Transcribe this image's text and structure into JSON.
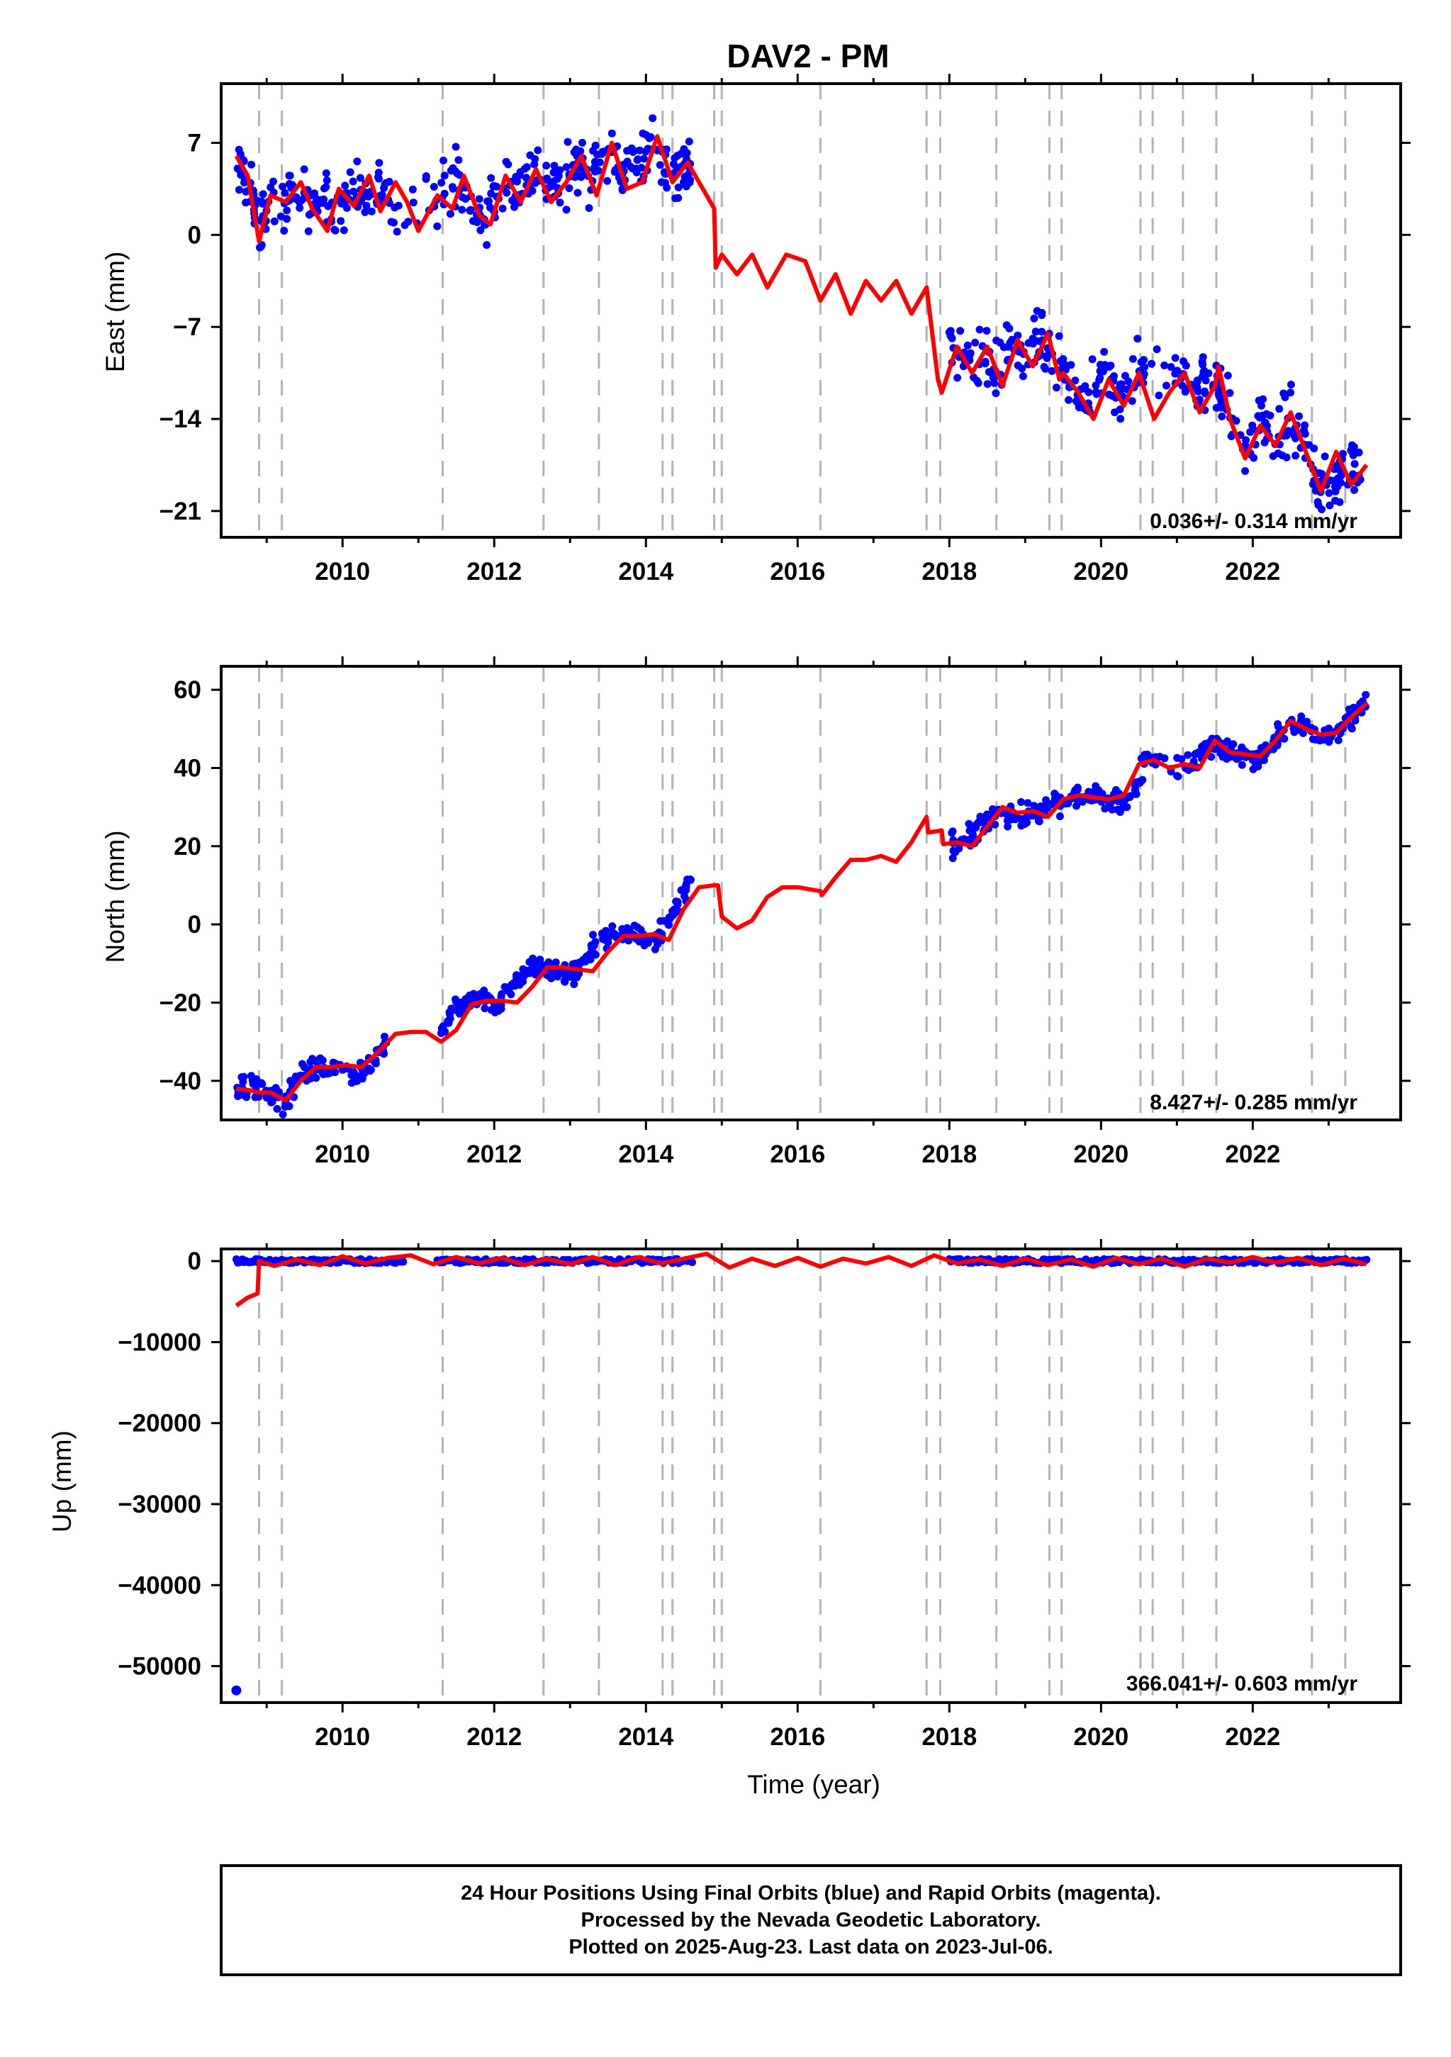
{
  "title": "DAV2 - PM",
  "footer": {
    "lines": [
      "24 Hour Positions Using Final Orbits (blue) and Rapid Orbits (magenta).",
      "Processed by the Nevada Geodetic Laboratory.",
      "Plotted on 2025-Aug-23. Last data on 2023-Jul-06."
    ]
  },
  "colors": {
    "data_points": "#0000ff",
    "model_line": "#ff0000",
    "event_lines": "#b3b3b3",
    "frame": "#000000"
  },
  "chart_data": [
    {
      "type": "scatter",
      "panel": "east",
      "ylabel": "East (mm)",
      "xlabel": "",
      "rate": "0.036+/- 0.314 mm/yr",
      "xlim": [
        2008.4,
        2023.95
      ],
      "ylim": [
        -23,
        11.5
      ],
      "xticks": [
        2010,
        2012,
        2014,
        2016,
        2018,
        2020,
        2022
      ],
      "yticks": [
        7,
        0,
        -7,
        -14,
        -21
      ],
      "yticklabels": [
        "7",
        "0",
        "−7",
        "−14",
        "−21"
      ],
      "event_lines": [
        2008.9,
        2009.2,
        2011.32,
        2012.65,
        2013.38,
        2014.22,
        2014.35,
        2014.9,
        2015.0,
        2016.3,
        2017.7,
        2017.88,
        2018.62,
        2019.32,
        2019.48,
        2020.52,
        2020.68,
        2021.08,
        2021.52,
        2022.78,
        2023.22
      ],
      "series": [
        {
          "kind": "points",
          "x": [
            2008.6,
            2008.75,
            2008.9,
            2009.0,
            2009.3,
            2009.5,
            2009.7,
            2009.9,
            2010.1,
            2010.3,
            2010.5,
            2010.7,
            2011.3,
            2011.5,
            2011.7,
            2011.9,
            2012.1,
            2012.3,
            2012.5,
            2012.7,
            2012.9,
            2013.1,
            2013.3,
            2013.5,
            2013.7,
            2013.9,
            2014.1,
            2014.3,
            2014.5,
            2014.6,
            2018.0,
            2018.2,
            2018.4,
            2018.6,
            2018.8,
            2019.0,
            2019.2,
            2019.4,
            2019.6,
            2019.8,
            2020.0,
            2020.2,
            2020.4,
            2020.6,
            2021.1,
            2021.3,
            2021.5,
            2021.6,
            2021.9,
            2022.1,
            2022.3,
            2022.5,
            2022.7,
            2022.9,
            2023.1,
            2023.3,
            2023.5
          ],
          "y": [
            5.5,
            4.0,
            0.5,
            1.8,
            3.0,
            2.5,
            3.5,
            0.8,
            3.8,
            2.2,
            3.8,
            2.5,
            3.2,
            4.5,
            2.0,
            1.0,
            4.5,
            3.5,
            5.0,
            4.0,
            3.5,
            5.5,
            4.5,
            7.0,
            5.0,
            5.5,
            7.0,
            4.5,
            5.5,
            5.0,
            -8.0,
            -10.0,
            -9.0,
            -10.5,
            -8.5,
            -9.5,
            -8.0,
            -10.0,
            -11.5,
            -13.0,
            -11.0,
            -12.0,
            -11.0,
            -10.0,
            -10.5,
            -11.5,
            -11.0,
            -12.0,
            -16.5,
            -14.5,
            -15.5,
            -14.0,
            -16.0,
            -19.5,
            -18.5,
            -17.5,
            -18.0
          ]
        },
        {
          "kind": "model",
          "x": [
            2008.6,
            2008.75,
            2008.9,
            2009.05,
            2009.25,
            2009.45,
            2009.6,
            2009.8,
            2009.95,
            2010.15,
            2010.35,
            2010.5,
            2010.7,
            2010.85,
            2011.0,
            2011.25,
            2011.45,
            2011.6,
            2011.8,
            2011.95,
            2012.15,
            2012.35,
            2012.55,
            2012.75,
            2012.95,
            2013.15,
            2013.35,
            2013.55,
            2013.75,
            2013.95,
            2014.15,
            2014.35,
            2014.55,
            2014.7,
            2014.9,
            2014.92,
            2015.0,
            2015.2,
            2015.4,
            2015.6,
            2015.85,
            2016.1,
            2016.3,
            2016.5,
            2016.7,
            2016.9,
            2017.1,
            2017.3,
            2017.5,
            2017.7,
            2017.85,
            2017.9,
            2018.1,
            2018.3,
            2018.5,
            2018.7,
            2018.9,
            2019.1,
            2019.3,
            2019.45,
            2019.5,
            2019.7,
            2019.9,
            2020.1,
            2020.3,
            2020.5,
            2020.7,
            2020.9,
            2021.1,
            2021.3,
            2021.5,
            2021.55,
            2021.7,
            2021.9,
            2022.1,
            2022.3,
            2022.5,
            2022.7,
            2022.9,
            2023.1,
            2023.3,
            2023.5
          ],
          "y": [
            6.0,
            4.5,
            -0.5,
            3.0,
            2.5,
            4.0,
            2.0,
            0.3,
            3.5,
            2.2,
            4.5,
            1.8,
            4.0,
            2.5,
            0.3,
            3.0,
            2.0,
            4.5,
            1.5,
            0.8,
            4.5,
            2.5,
            5.0,
            2.5,
            4.0,
            6.0,
            3.0,
            7.0,
            3.5,
            4.0,
            7.5,
            4.0,
            5.5,
            4.0,
            2.0,
            -2.5,
            -1.5,
            -3.0,
            -1.5,
            -4.0,
            -1.5,
            -2.0,
            -5.0,
            -3.0,
            -6.0,
            -3.5,
            -5.0,
            -3.5,
            -6.0,
            -4.0,
            -11.0,
            -12.0,
            -8.5,
            -10.5,
            -8.5,
            -11.5,
            -8.0,
            -10.0,
            -7.5,
            -11.0,
            -10.5,
            -12.0,
            -14.0,
            -11.0,
            -13.0,
            -10.5,
            -14.0,
            -12.0,
            -10.5,
            -13.5,
            -11.5,
            -10.0,
            -14.0,
            -17.0,
            -14.5,
            -16.0,
            -13.5,
            -16.5,
            -19.5,
            -16.5,
            -19.0,
            -17.5
          ]
        }
      ]
    },
    {
      "type": "scatter",
      "panel": "north",
      "ylabel": "North (mm)",
      "xlabel": "",
      "rate": "8.427+/- 0.285 mm/yr",
      "xlim": [
        2008.4,
        2023.95
      ],
      "ylim": [
        -50,
        66
      ],
      "xticks": [
        2010,
        2012,
        2014,
        2016,
        2018,
        2020,
        2022
      ],
      "yticks": [
        60,
        40,
        20,
        0,
        -20,
        -40
      ],
      "yticklabels": [
        "60",
        "40",
        "20",
        "0",
        "−20",
        "−40"
      ],
      "event_lines": [
        2008.9,
        2009.2,
        2011.32,
        2012.65,
        2013.38,
        2014.22,
        2014.35,
        2014.9,
        2015.0,
        2016.3,
        2017.7,
        2017.88,
        2018.62,
        2019.32,
        2019.48,
        2020.52,
        2020.68,
        2021.08,
        2021.52,
        2022.78,
        2023.22
      ],
      "series": [
        {
          "kind": "points",
          "x": [
            2008.6,
            2008.8,
            2009.0,
            2009.2,
            2009.4,
            2009.6,
            2009.8,
            2010.0,
            2010.2,
            2010.4,
            2010.6,
            2011.3,
            2011.5,
            2011.7,
            2011.9,
            2012.1,
            2012.3,
            2012.5,
            2012.7,
            2012.9,
            2013.1,
            2013.3,
            2013.5,
            2013.7,
            2013.9,
            2014.1,
            2014.3,
            2014.5,
            2014.6,
            2018.0,
            2018.2,
            2018.4,
            2018.6,
            2018.8,
            2019.0,
            2019.2,
            2019.4,
            2019.6,
            2019.8,
            2020.0,
            2020.2,
            2020.4,
            2020.6,
            2021.1,
            2021.3,
            2021.5,
            2021.7,
            2021.9,
            2022.1,
            2022.3,
            2022.5,
            2022.7,
            2022.9,
            2023.1,
            2023.3,
            2023.5
          ],
          "y": [
            -42,
            -41,
            -43,
            -46,
            -40,
            -37,
            -36,
            -37,
            -38,
            -35,
            -30,
            -28,
            -21,
            -19,
            -19,
            -20,
            -14,
            -11,
            -11,
            -13,
            -12,
            -6,
            -3,
            -3,
            -2,
            -4,
            0,
            8,
            11,
            21,
            20,
            25,
            29,
            28,
            27,
            29,
            31,
            32,
            33,
            32,
            32,
            33,
            42,
            40,
            44,
            47,
            44,
            43,
            42,
            48,
            51,
            50,
            48,
            48,
            52,
            58
          ]
        },
        {
          "kind": "model",
          "x": [
            2008.6,
            2008.8,
            2008.9,
            2009.05,
            2009.25,
            2009.45,
            2009.65,
            2009.85,
            2010.05,
            2010.25,
            2010.45,
            2010.7,
            2010.9,
            2011.1,
            2011.3,
            2011.5,
            2011.7,
            2011.9,
            2012.1,
            2012.3,
            2012.5,
            2012.7,
            2012.9,
            2013.1,
            2013.3,
            2013.5,
            2013.7,
            2013.9,
            2014.1,
            2014.3,
            2014.5,
            2014.7,
            2014.9,
            2014.95,
            2015.0,
            2015.2,
            2015.4,
            2015.6,
            2015.8,
            2016.0,
            2016.3,
            2016.32,
            2016.5,
            2016.7,
            2016.9,
            2017.1,
            2017.3,
            2017.5,
            2017.7,
            2017.72,
            2017.9,
            2017.92,
            2018.1,
            2018.3,
            2018.5,
            2018.7,
            2018.9,
            2019.1,
            2019.3,
            2019.5,
            2019.7,
            2019.9,
            2020.1,
            2020.3,
            2020.5,
            2020.7,
            2020.9,
            2021.1,
            2021.3,
            2021.5,
            2021.7,
            2021.9,
            2022.1,
            2022.3,
            2022.5,
            2022.7,
            2022.9,
            2023.1,
            2023.3,
            2023.5
          ],
          "y": [
            -42,
            -42.5,
            -43,
            -43,
            -45,
            -40,
            -36.5,
            -36.5,
            -36,
            -36.5,
            -33,
            -28,
            -27.5,
            -27.5,
            -30,
            -27,
            -20.5,
            -19.5,
            -19.5,
            -20,
            -16,
            -11,
            -11,
            -11.5,
            -12,
            -7,
            -3,
            -3,
            -2.5,
            -4,
            4,
            9.5,
            10,
            10,
            2,
            -1,
            1,
            7,
            9.5,
            9.5,
            8.5,
            7.5,
            12,
            16.5,
            16.5,
            17.5,
            16,
            21,
            27.5,
            23.5,
            24,
            20.5,
            21,
            20,
            25,
            30,
            28.5,
            29,
            27.5,
            32,
            33,
            32.5,
            32,
            33,
            41,
            42,
            40,
            41,
            40,
            47,
            44,
            43.5,
            43,
            47,
            52,
            50,
            48.5,
            49,
            53,
            56.5
          ]
        }
      ]
    },
    {
      "type": "scatter",
      "panel": "up",
      "ylabel": "Up (mm)",
      "xlabel": "Time (year)",
      "rate": "366.041+/- 0.603 mm/yr",
      "xlim": [
        2008.4,
        2023.95
      ],
      "ylim": [
        -54500,
        1500
      ],
      "xticks": [
        2010,
        2012,
        2014,
        2016,
        2018,
        2020,
        2022
      ],
      "yticks": [
        0,
        -10000,
        -20000,
        -30000,
        -40000,
        -50000
      ],
      "yticklabels": [
        "0",
        "−10000",
        "−20000",
        "−30000",
        "−40000",
        "−50000"
      ],
      "event_lines": [
        2008.9,
        2009.2,
        2011.32,
        2012.65,
        2013.38,
        2014.22,
        2014.35,
        2014.9,
        2015.0,
        2016.3,
        2017.7,
        2017.88,
        2018.62,
        2019.32,
        2019.48,
        2020.52,
        2020.68,
        2021.08,
        2021.52,
        2022.78,
        2023.22
      ],
      "outlier": {
        "x": 2008.6,
        "y": -53000
      },
      "data_segments": [
        [
          2008.6,
          2010.8
        ],
        [
          2011.25,
          2014.62
        ],
        [
          2018.0,
          2023.5
        ]
      ],
      "series": [
        {
          "kind": "model",
          "x": [
            2008.6,
            2008.75,
            2008.88,
            2008.9,
            2009.1,
            2009.4,
            2009.7,
            2010.0,
            2010.3,
            2010.6,
            2010.9,
            2011.2,
            2011.5,
            2011.8,
            2012.1,
            2012.4,
            2012.7,
            2013.0,
            2013.3,
            2013.6,
            2013.9,
            2014.2,
            2014.5,
            2014.8,
            2015.1,
            2015.4,
            2015.7,
            2016.0,
            2016.3,
            2016.6,
            2016.9,
            2017.2,
            2017.5,
            2017.8,
            2018.1,
            2018.4,
            2018.7,
            2019.0,
            2019.3,
            2019.6,
            2019.9,
            2020.2,
            2020.5,
            2020.8,
            2021.1,
            2021.4,
            2021.7,
            2022.0,
            2022.3,
            2022.6,
            2022.9,
            2023.2,
            2023.5
          ],
          "y": [
            -5500,
            -4500,
            -4000,
            0,
            -600,
            200,
            -500,
            600,
            -300,
            400,
            700,
            -400,
            500,
            -300,
            400,
            -500,
            300,
            -400,
            500,
            -500,
            500,
            -300,
            300,
            900,
            -800,
            300,
            -600,
            400,
            -700,
            300,
            -300,
            500,
            -600,
            700,
            -300,
            200,
            -600,
            300,
            -500,
            200,
            -700,
            400,
            -400,
            300,
            -700,
            300,
            -200,
            500,
            -200,
            400,
            -500,
            300,
            -400
          ]
        }
      ]
    }
  ]
}
